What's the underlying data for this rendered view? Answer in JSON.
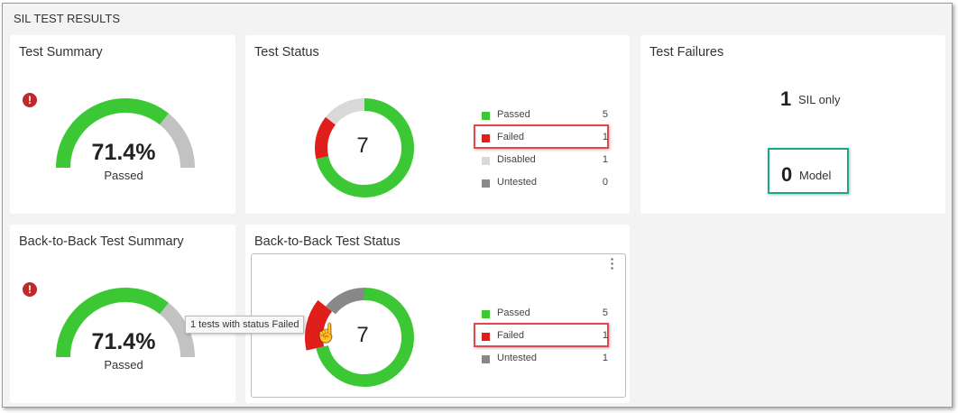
{
  "header": {
    "title": "SIL TEST RESULTS"
  },
  "colors": {
    "passed": "#3cc735",
    "failed": "#e01e1a",
    "disabled": "#d9d9d9",
    "untested": "#888888",
    "gauge_rest": "#c2c2c2",
    "highlight_red": "#e2474f",
    "highlight_teal": "#1aa88a"
  },
  "test_summary": {
    "title": "Test Summary",
    "icon": "error-icon",
    "percent_text": "71.4%",
    "percent": 71.4,
    "label": "Passed"
  },
  "test_status": {
    "title": "Test Status",
    "total": "7",
    "legend": [
      {
        "label": "Passed",
        "value": "5"
      },
      {
        "label": "Failed",
        "value": "1"
      },
      {
        "label": "Disabled",
        "value": "1"
      },
      {
        "label": "Untested",
        "value": "0"
      }
    ]
  },
  "test_failures": {
    "title": "Test Failures",
    "sil_count": "1",
    "sil_label": "SIL only",
    "model_count": "0",
    "model_label": "Model"
  },
  "b2b_summary": {
    "title": "Back-to-Back Test Summary",
    "icon": "error-icon",
    "percent_text": "71.4%",
    "percent": 71.4,
    "label": "Passed"
  },
  "b2b_status": {
    "title": "Back-to-Back Test Status",
    "total": "7",
    "tooltip": "1 tests with status Failed",
    "legend": [
      {
        "label": "Passed",
        "value": "5"
      },
      {
        "label": "Failed",
        "value": "1"
      },
      {
        "label": "Untested",
        "value": "1"
      }
    ]
  }
}
